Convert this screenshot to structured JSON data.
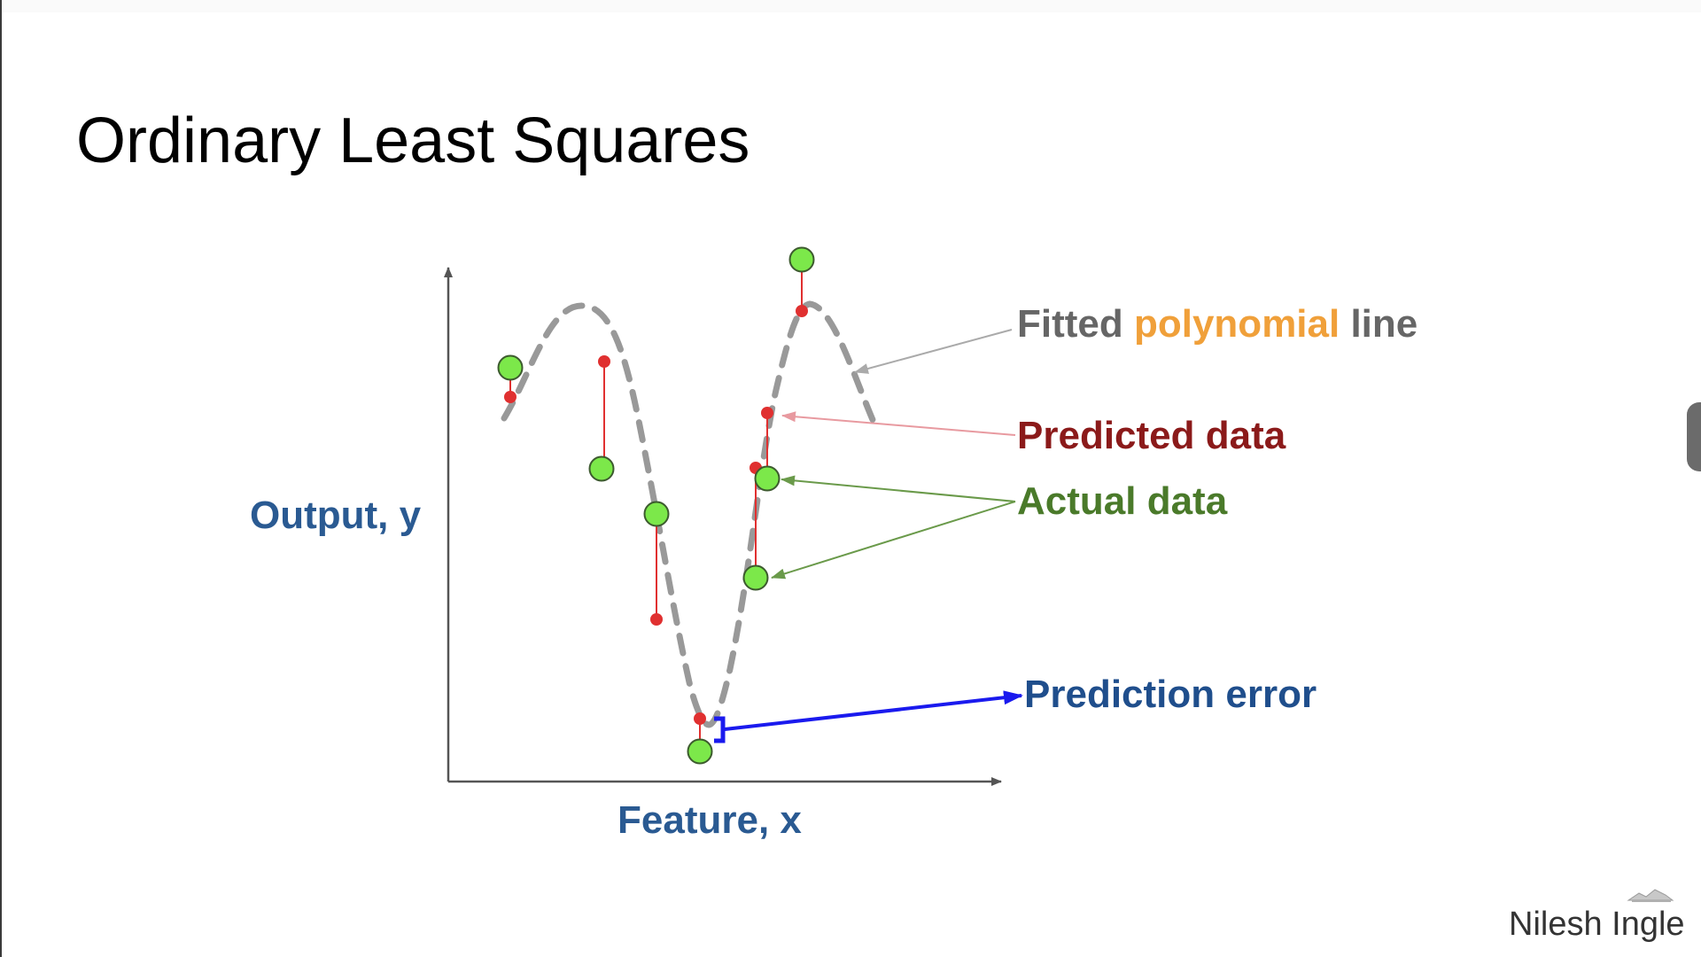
{
  "slide": {
    "title": "Ordinary Least Squares",
    "presenter": "Nilesh Ingle"
  },
  "diagram": {
    "axes": {
      "x_label": "Feature, x",
      "y_label": "Output, y"
    },
    "labels": {
      "fitted_prefix": "Fitted ",
      "fitted_accent": "polynomial",
      "fitted_suffix": " line",
      "predicted": "Predicted data",
      "actual": "Actual data",
      "error": "Prediction error"
    },
    "colors": {
      "fitted_line": "#999999",
      "fitted_text": "#666666",
      "accent": "#f0a03a",
      "predicted": "#e03030",
      "predicted_text": "#8b1a1a",
      "actual_fill": "#7ce84a",
      "actual_text": "#4a7a2a",
      "error": "#1a1aee",
      "error_text": "#1f4e8c",
      "axis_text": "#2a5a92"
    }
  }
}
